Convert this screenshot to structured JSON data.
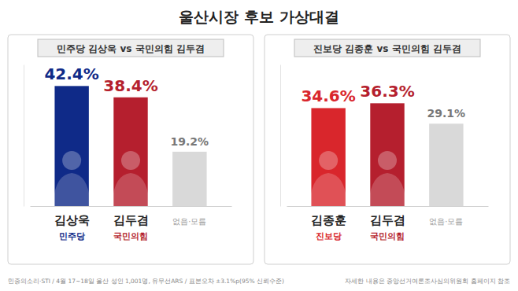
{
  "title": "울산시장 후보 가상대결",
  "source": "민중의소리·STI / 4월 17~18일 울산 성인 1,001명, 유무선ARS / 표본오차 ±3.1%p(95% 신뢰수준)",
  "note": "자세한 내용은 중앙선거여론조사심의위원회 홈페이지 참조",
  "chart_data": [
    {
      "type": "bar",
      "title": "민주당 김상욱 vs 국민의힘 김두겸",
      "categories": [
        "김상욱",
        "김두겸",
        "없음·모름"
      ],
      "parties": [
        "민주당",
        "국민의힘",
        null
      ],
      "values": [
        42.4,
        38.4,
        19.2
      ],
      "value_labels": [
        "42.4%",
        "38.4%",
        "19.2%"
      ],
      "colors": [
        "#0f2a88",
        "#b51f2e",
        "#d9d9d9"
      ],
      "ylim": [
        0,
        50
      ],
      "data_labels": true,
      "tick_labels": "x"
    },
    {
      "type": "bar",
      "title": "진보당 김종훈 vs 국민의힘 김두겸",
      "categories": [
        "김종훈",
        "김두겸",
        "없음·모름"
      ],
      "parties": [
        "진보당",
        "국민의힘",
        null
      ],
      "values": [
        34.6,
        36.3,
        29.1
      ],
      "value_labels": [
        "34.6%",
        "36.3%",
        "29.1%"
      ],
      "colors": [
        "#d9262c",
        "#b51f2e",
        "#d9d9d9"
      ],
      "ylim": [
        0,
        50
      ],
      "data_labels": true,
      "tick_labels": "x"
    }
  ]
}
